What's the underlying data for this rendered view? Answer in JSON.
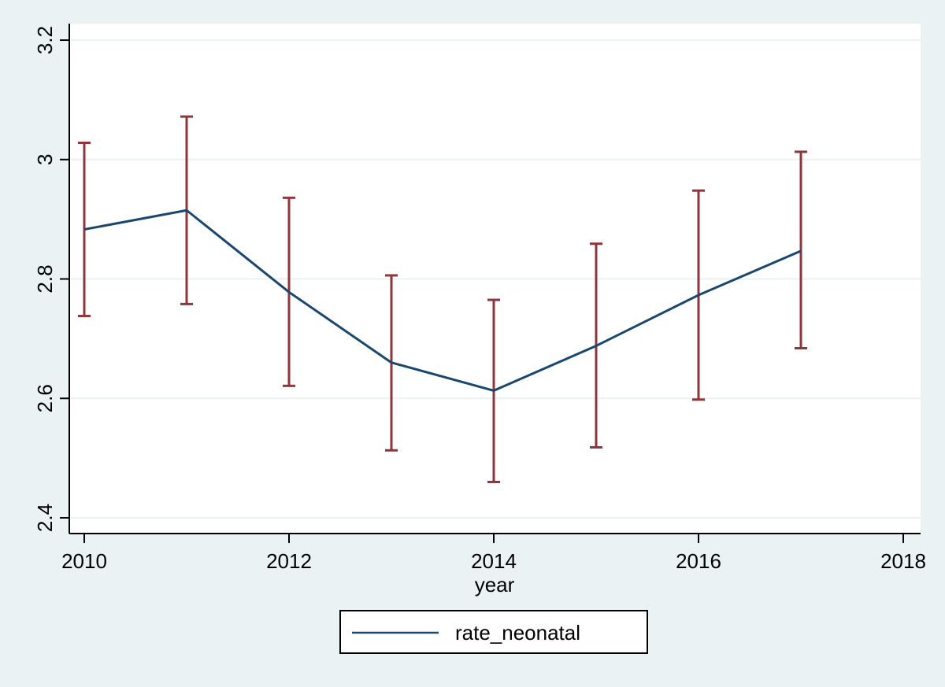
{
  "chart_data": {
    "type": "line",
    "xlabel": "year",
    "ylabel": "",
    "xlim": [
      2010,
      2018
    ],
    "ylim": [
      2.4,
      3.2
    ],
    "xticks": [
      2010,
      2012,
      2014,
      2016,
      2018
    ],
    "yticks": [
      2.4,
      2.6,
      2.8,
      3.0,
      3.2
    ],
    "ytick_labels": [
      "2.4",
      "2.6",
      "2.8",
      "3",
      "3.2"
    ],
    "grid": "horizontal",
    "legend_position": "bottom",
    "series": [
      {
        "name": "rate_neonatal",
        "color": "#1a476f",
        "x": [
          2010,
          2011,
          2012,
          2013,
          2014,
          2015,
          2016,
          2017
        ],
        "y": [
          2.883,
          2.915,
          2.778,
          2.66,
          2.613,
          2.688,
          2.773,
          2.847
        ]
      }
    ],
    "error_bars": {
      "color": "#90353b",
      "x": [
        2010,
        2011,
        2012,
        2013,
        2014,
        2015,
        2016,
        2017
      ],
      "lower": [
        2.738,
        2.758,
        2.621,
        2.513,
        2.46,
        2.518,
        2.598,
        2.684
      ],
      "upper": [
        3.028,
        3.072,
        2.936,
        2.806,
        2.765,
        2.859,
        2.948,
        3.013
      ]
    }
  }
}
